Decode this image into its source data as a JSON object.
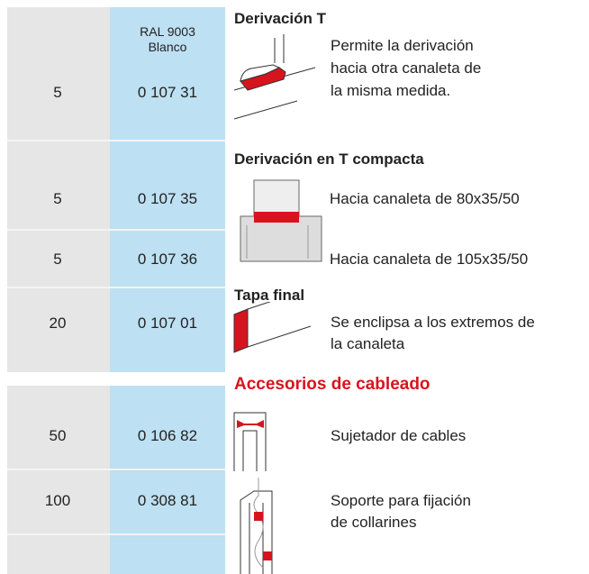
{
  "header": {
    "lines": [
      "RAL 9003",
      "Blanco"
    ]
  },
  "sections": [
    {
      "title": "Derivación T",
      "rows": [
        {
          "qty": 5,
          "code": "0 107 31",
          "description": [
            "Permite la derivación",
            "hacia otra canaleta de",
            "la misma medida."
          ]
        }
      ]
    },
    {
      "title": "Derivación en T compacta",
      "rows": [
        {
          "qty": 5,
          "code": "0 107 35",
          "description": [
            "Hacia canaleta de 80x35/50"
          ]
        },
        {
          "qty": 5,
          "code": "0 107 36",
          "description": [
            "Hacia canaleta de 105x35/50"
          ]
        }
      ]
    },
    {
      "title": "Tapa final",
      "rows": [
        {
          "qty": 20,
          "code": "0 107 01",
          "description": [
            "Se enclipsa a los extremos de",
            "la canaleta"
          ]
        }
      ]
    },
    {
      "title": "Accesorios de cableado",
      "rows": [
        {
          "qty": 50,
          "code": "0 106 82",
          "description": [
            "Sujetador de cables"
          ]
        },
        {
          "qty": 100,
          "code": "0 308 81",
          "description": [
            "Soporte para fijación",
            "de collarines"
          ]
        }
      ]
    }
  ]
}
